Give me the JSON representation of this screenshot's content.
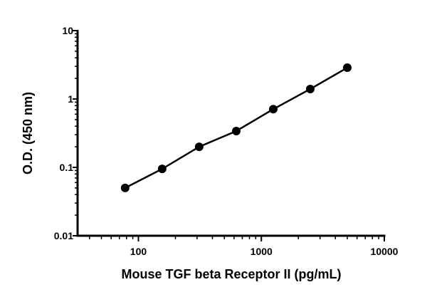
{
  "chart_data": {
    "type": "line",
    "title": "",
    "xlabel": "Mouse TGF beta Receptor II (pg/mL)",
    "ylabel": "O.D. (450 nm)",
    "xscale": "log",
    "yscale": "log",
    "xlim": [
      32,
      10000
    ],
    "ylim": [
      0.01,
      10
    ],
    "xticks": [
      {
        "v": 100,
        "label": "100"
      },
      {
        "v": 1000,
        "label": "1000"
      },
      {
        "v": 10000,
        "label": "10000"
      }
    ],
    "yticks": [
      {
        "v": 0.01,
        "label": "0.01"
      },
      {
        "v": 0.1,
        "label": "0.1"
      },
      {
        "v": 1,
        "label": "1"
      },
      {
        "v": 10,
        "label": "10"
      }
    ],
    "grid": false,
    "series": [
      {
        "x": [
          78,
          156,
          312,
          625,
          1250,
          2500,
          5000
        ],
        "y": [
          0.05,
          0.095,
          0.2,
          0.34,
          0.71,
          1.4,
          2.87
        ],
        "color": "#000000",
        "marker": "circle"
      }
    ]
  }
}
